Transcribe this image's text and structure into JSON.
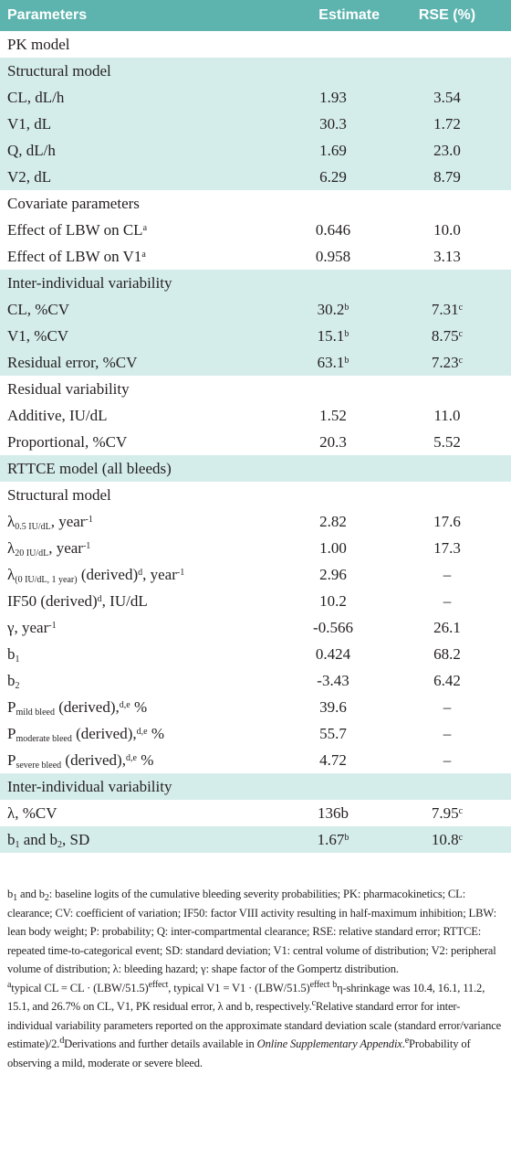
{
  "table": {
    "header": [
      "Parameters",
      "Estimate",
      "RSE (%)"
    ],
    "rows": [
      {
        "label": [
          "PK model"
        ],
        "shaded": false
      },
      {
        "label": [
          "Structural model"
        ],
        "shaded": true
      },
      {
        "label": [
          "CL, dL/h"
        ],
        "estimate": [
          "1.93"
        ],
        "rse": [
          "3.54"
        ],
        "shaded": true
      },
      {
        "label": [
          "V1, dL"
        ],
        "estimate": [
          "30.3"
        ],
        "rse": [
          "1.72"
        ],
        "shaded": true
      },
      {
        "label": [
          "Q, dL/h"
        ],
        "estimate": [
          "1.69"
        ],
        "rse": [
          "23.0"
        ],
        "shaded": true
      },
      {
        "label": [
          "V2, dL"
        ],
        "estimate": [
          "6.29"
        ],
        "rse": [
          "8.79"
        ],
        "shaded": true
      },
      {
        "label": [
          "Covariate parameters"
        ],
        "shaded": false
      },
      {
        "label": [
          "Effect of LBW on CL",
          {
            "sup": "a"
          }
        ],
        "estimate": [
          "0.646"
        ],
        "rse": [
          "10.0"
        ],
        "shaded": false
      },
      {
        "label": [
          "Effect of LBW on V1",
          {
            "sup": "a"
          }
        ],
        "estimate": [
          "0.958"
        ],
        "rse": [
          "3.13"
        ],
        "shaded": false
      },
      {
        "label": [
          "Inter-individual variability"
        ],
        "shaded": true
      },
      {
        "label": [
          "CL, %CV"
        ],
        "estimate": [
          "30.2",
          {
            "sup": "b"
          }
        ],
        "rse": [
          "7.31",
          {
            "sup": "c"
          }
        ],
        "shaded": true
      },
      {
        "label": [
          "V1, %CV"
        ],
        "estimate": [
          "15.1",
          {
            "sup": "b"
          }
        ],
        "rse": [
          "8.75",
          {
            "sup": "c"
          }
        ],
        "shaded": true
      },
      {
        "label": [
          "Residual error, %CV"
        ],
        "estimate": [
          "63.1",
          {
            "sup": "b"
          }
        ],
        "rse": [
          "7.23",
          {
            "sup": "c"
          }
        ],
        "shaded": true
      },
      {
        "label": [
          "Residual variability"
        ],
        "shaded": false
      },
      {
        "label": [
          "Additive, IU/dL"
        ],
        "estimate": [
          "1.52"
        ],
        "rse": [
          "11.0"
        ],
        "shaded": false
      },
      {
        "label": [
          "Proportional, %CV"
        ],
        "estimate": [
          "20.3"
        ],
        "rse": [
          "5.52"
        ],
        "shaded": false
      },
      {
        "label": [
          "RTTCE model (all bleeds)"
        ],
        "shaded": true
      },
      {
        "label": [
          "Structural model"
        ],
        "shaded": false
      },
      {
        "label": [
          "λ",
          {
            "sub": "0.5 IU/dL"
          },
          ", year",
          {
            "sup": "-1"
          }
        ],
        "estimate": [
          "2.82"
        ],
        "rse": [
          "17.6"
        ],
        "shaded": false
      },
      {
        "label": [
          "λ",
          {
            "sub": "20 IU/dL"
          },
          ", year",
          {
            "sup": "-1"
          }
        ],
        "estimate": [
          "1.00"
        ],
        "rse": [
          "17.3"
        ],
        "shaded": false
      },
      {
        "label": [
          "λ",
          {
            "sub": "(0 IU/dL, 1 year)"
          },
          " (derived)",
          {
            "sup": "d"
          },
          ", year",
          {
            "sup": "-1"
          }
        ],
        "estimate": [
          "2.96"
        ],
        "rse": [
          "–"
        ],
        "shaded": false
      },
      {
        "label": [
          "IF50 (derived)",
          {
            "sup": "d"
          },
          ", IU/dL"
        ],
        "estimate": [
          "10.2"
        ],
        "rse": [
          "–"
        ],
        "shaded": false
      },
      {
        "label": [
          "γ, year",
          {
            "sup": "-1"
          }
        ],
        "estimate": [
          "-0.566"
        ],
        "rse": [
          "26.1"
        ],
        "shaded": false
      },
      {
        "label": [
          "b",
          {
            "sub": "1"
          }
        ],
        "estimate": [
          "0.424"
        ],
        "rse": [
          "68.2"
        ],
        "shaded": false
      },
      {
        "label": [
          "b",
          {
            "sub": "2"
          }
        ],
        "estimate": [
          "-3.43"
        ],
        "rse": [
          "6.42"
        ],
        "shaded": false
      },
      {
        "label": [
          "P",
          {
            "sub": "mild bleed"
          },
          " (derived),",
          {
            "sup": "d,e"
          },
          " %"
        ],
        "estimate": [
          "39.6"
        ],
        "rse": [
          "–"
        ],
        "shaded": false
      },
      {
        "label": [
          "P",
          {
            "sub": "moderate bleed"
          },
          " (derived),",
          {
            "sup": "d,e"
          },
          " %"
        ],
        "estimate": [
          "55.7"
        ],
        "rse": [
          "–"
        ],
        "shaded": false
      },
      {
        "label": [
          "P",
          {
            "sub": "severe bleed"
          },
          " (derived),",
          {
            "sup": "d,e"
          },
          " %"
        ],
        "estimate": [
          "4.72"
        ],
        "rse": [
          "–"
        ],
        "shaded": false
      },
      {
        "label": [
          "Inter-individual variability"
        ],
        "shaded": true
      },
      {
        "label": [
          "λ, %CV"
        ],
        "estimate": [
          "136b"
        ],
        "rse": [
          "7.95",
          {
            "sup": "c"
          }
        ],
        "shaded": false
      },
      {
        "label": [
          "b",
          {
            "sub": "1"
          },
          " and b",
          {
            "sub": "2"
          },
          ", SD"
        ],
        "estimate": [
          "1.67",
          {
            "sup": "b"
          }
        ],
        "rse": [
          "10.8",
          {
            "sup": "c"
          }
        ],
        "shaded": true
      }
    ]
  },
  "footnotes": [
    [
      "b",
      {
        "sub": "1"
      },
      " and b",
      {
        "sub": "2"
      },
      ": baseline logits of the cumulative bleeding severity probabilities; PK: pharmacokinetics; CL: clearance; CV: coefficient of variation; IF50: factor VIII activity resulting in half-maximum inhibition; LBW: lean body weight; P: probability; Q: inter-compartmental clearance; RSE: relative standard error; RTTCE: repeated time-to-categorical event; SD: standard deviation; V1: central volume of distribution; V2: peripheral volume of distribution; λ: bleeding hazard; γ: shape factor of the Gompertz distribution."
    ],
    [
      {
        "sup": "a"
      },
      "typical CL = CL · (LBW/51.5)",
      {
        "sup": "effect"
      },
      ", typical V1 = V1 · (LBW/51.5)",
      {
        "sup": "effect"
      },
      " ",
      {
        "sup": "b"
      },
      "η-shrinkage was 10.4, 16.1, 11.2, 15.1, and 26.7% on CL, V1, PK residual error, λ and b, respectively.",
      {
        "sup": "c"
      },
      "Relative standard error for inter-individual variability parameters reported on the approximate standard deviation scale (standard error/variance estimate)/2.",
      {
        "sup": "d"
      },
      "Derivations and further details available in ",
      {
        "i": "Online Supplementary Appendix"
      },
      ".",
      {
        "sup": "e"
      },
      "Probability of observing a mild, moderate or severe bleed."
    ]
  ]
}
